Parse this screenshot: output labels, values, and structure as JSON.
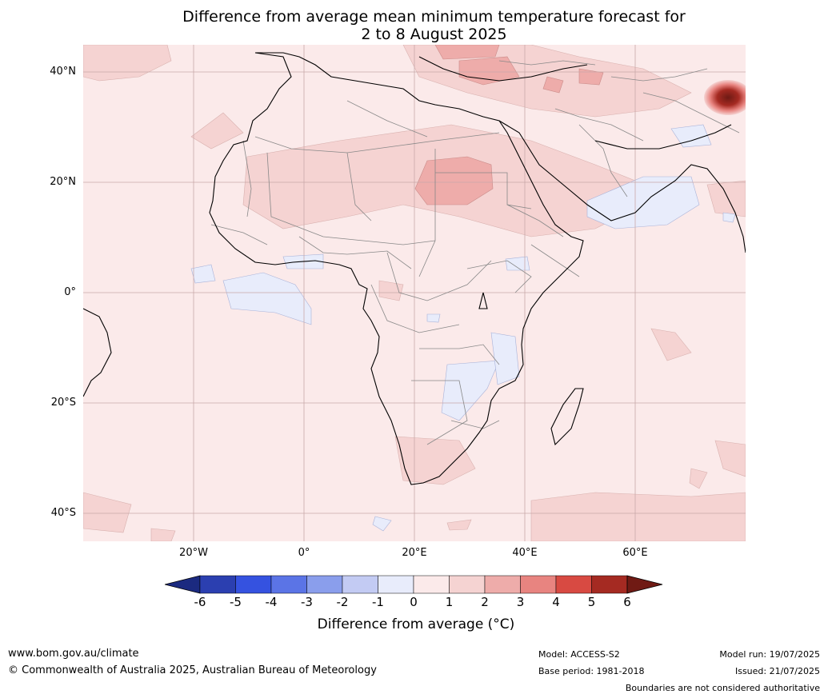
{
  "title_line1": "Difference from average mean minimum temperature forecast for",
  "title_line2": "2 to 8 August 2025",
  "lat_labels": [
    "40°N",
    "20°N",
    "0°",
    "20°S",
    "40°S"
  ],
  "lon_labels": [
    "20°W",
    "0°",
    "20°E",
    "40°E",
    "60°E"
  ],
  "colorbar": {
    "ticks": [
      "-6",
      "-5",
      "-4",
      "-3",
      "-2",
      "-1",
      "0",
      "1",
      "2",
      "3",
      "4",
      "5",
      "6"
    ],
    "colors": [
      "#1b2a80",
      "#2b3fb0",
      "#3552e0",
      "#5b74e6",
      "#8a9eec",
      "#c3cbf3",
      "#e8ecfb",
      "#fbeaea",
      "#f5d3d2",
      "#eeacaa",
      "#e88480",
      "#d84a42",
      "#a52a22",
      "#701a14"
    ],
    "label": "Difference from average (°C)"
  },
  "footer": {
    "website": "www.bom.gov.au/climate",
    "copyright": "© Commonwealth of Australia 2025, Australian Bureau of Meteorology",
    "model": "Model: ACCESS-S2",
    "base_period": "Base period: 1981-2018",
    "model_run": "Model run: 19/07/2025",
    "issued": "Issued: 21/07/2025",
    "disclaimer": "Boundaries are not considered authoritative"
  }
}
